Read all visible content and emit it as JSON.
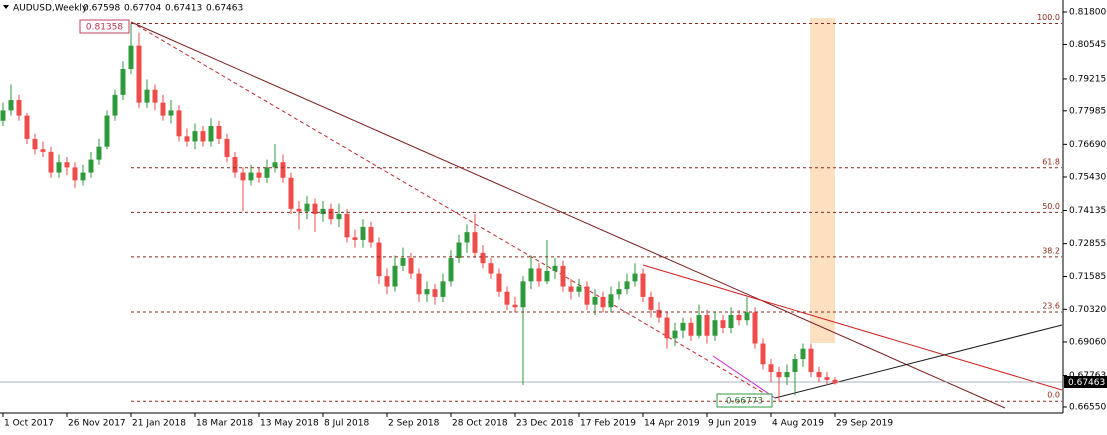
{
  "chart_data": {
    "type": "candlestick",
    "title": "AUDUSD,Weekly",
    "up_color": "#2e9a3c",
    "down_color": "#ee4b4b",
    "categories": [
      "1 Oct 2017",
      null,
      null,
      null,
      null,
      null,
      null,
      null,
      "26 Nov 2017",
      null,
      null,
      null,
      null,
      null,
      null,
      null,
      "21 Jan 2018",
      null,
      null,
      null,
      null,
      null,
      null,
      null,
      "18 Mar 2018",
      null,
      null,
      null,
      null,
      null,
      null,
      null,
      "13 May 2018",
      null,
      null,
      null,
      null,
      null,
      null,
      null,
      "8 Jul 2018",
      null,
      null,
      null,
      null,
      null,
      null,
      null,
      "2 Sep 2018",
      null,
      null,
      null,
      null,
      null,
      null,
      null,
      "28 Oct 2018",
      null,
      null,
      null,
      null,
      null,
      null,
      null,
      "23 Dec 2018",
      null,
      null,
      null,
      null,
      null,
      null,
      null,
      "17 Feb 2019",
      null,
      null,
      null,
      null,
      null,
      null,
      null,
      "14 Apr 2019",
      null,
      null,
      null,
      null,
      null,
      null,
      null,
      "9 Jun 2019",
      null,
      null,
      null,
      null,
      null,
      null,
      null,
      "4 Aug 2019",
      null,
      null,
      null,
      null,
      null,
      null,
      null,
      "29 Sep 2019"
    ],
    "open": [
      0.776,
      0.78,
      0.784,
      0.778,
      0.769,
      0.765,
      0.764,
      0.756,
      0.76,
      0.758,
      0.753,
      0.756,
      0.761,
      0.766,
      0.778,
      0.786,
      0.796,
      0.805,
      0.783,
      0.788,
      0.783,
      0.778,
      0.78,
      0.77,
      0.768,
      0.772,
      0.768,
      0.774,
      0.769,
      0.762,
      0.756,
      0.753,
      0.756,
      0.754,
      0.758,
      0.76,
      0.754,
      0.742,
      0.741,
      0.744,
      0.74,
      0.742,
      0.738,
      0.74,
      0.731,
      0.73,
      0.735,
      0.729,
      0.716,
      0.712,
      0.72,
      0.723,
      0.717,
      0.709,
      0.711,
      0.708,
      0.714,
      0.723,
      0.729,
      0.733,
      0.725,
      0.721,
      0.717,
      0.71,
      0.705,
      0.704,
      0.714,
      0.719,
      0.714,
      0.718,
      0.72,
      0.712,
      0.71,
      0.712,
      0.705,
      0.708,
      0.704,
      0.709,
      0.711,
      0.714,
      0.717,
      0.708,
      0.703,
      0.7,
      0.692,
      0.695,
      0.698,
      0.693,
      0.701,
      0.693,
      0.699,
      0.696,
      0.701,
      0.699,
      0.702,
      0.69,
      0.682,
      0.679,
      0.677,
      0.679,
      0.684,
      0.688,
      0.679,
      0.677,
      0.67598
    ],
    "high": [
      0.783,
      0.79,
      0.786,
      0.779,
      0.771,
      0.768,
      0.766,
      0.763,
      0.762,
      0.76,
      0.759,
      0.764,
      0.769,
      0.78,
      0.788,
      0.799,
      0.81358,
      0.81,
      0.792,
      0.79,
      0.786,
      0.784,
      0.782,
      0.773,
      0.775,
      0.774,
      0.777,
      0.776,
      0.771,
      0.764,
      0.758,
      0.759,
      0.758,
      0.761,
      0.767,
      0.763,
      0.756,
      0.745,
      0.747,
      0.746,
      0.745,
      0.744,
      0.744,
      0.742,
      0.734,
      0.738,
      0.737,
      0.731,
      0.719,
      0.724,
      0.727,
      0.725,
      0.719,
      0.714,
      0.713,
      0.717,
      0.726,
      0.732,
      0.736,
      0.74,
      0.728,
      0.723,
      0.719,
      0.712,
      0.708,
      0.716,
      0.724,
      0.721,
      0.73,
      0.723,
      0.722,
      0.715,
      0.715,
      0.714,
      0.711,
      0.71,
      0.712,
      0.714,
      0.717,
      0.721,
      0.719,
      0.71,
      0.706,
      0.702,
      0.698,
      0.7,
      0.7,
      0.705,
      0.703,
      0.702,
      0.701,
      0.704,
      0.703,
      0.708,
      0.704,
      0.692,
      0.684,
      0.681,
      0.682,
      0.686,
      0.69,
      0.69,
      0.681,
      0.679,
      0.67704
    ],
    "low": [
      0.774,
      0.778,
      0.776,
      0.767,
      0.763,
      0.762,
      0.754,
      0.754,
      0.755,
      0.75,
      0.751,
      0.754,
      0.759,
      0.765,
      0.776,
      0.784,
      0.794,
      0.781,
      0.781,
      0.78,
      0.776,
      0.775,
      0.768,
      0.766,
      0.765,
      0.766,
      0.766,
      0.767,
      0.76,
      0.754,
      0.741,
      0.751,
      0.752,
      0.752,
      0.756,
      0.752,
      0.74,
      0.734,
      0.738,
      0.733,
      0.737,
      0.736,
      0.735,
      0.729,
      0.727,
      0.727,
      0.727,
      0.713,
      0.709,
      0.71,
      0.718,
      0.715,
      0.706,
      0.706,
      0.705,
      0.706,
      0.712,
      0.721,
      0.725,
      0.723,
      0.719,
      0.715,
      0.708,
      0.703,
      0.702,
      0.674,
      0.711,
      0.712,
      0.713,
      0.715,
      0.71,
      0.707,
      0.708,
      0.703,
      0.701,
      0.702,
      0.702,
      0.707,
      0.709,
      0.712,
      0.706,
      0.7,
      0.698,
      0.688,
      0.689,
      0.692,
      0.691,
      0.692,
      0.69,
      0.691,
      0.694,
      0.694,
      0.697,
      0.697,
      0.688,
      0.68,
      0.675,
      0.66773,
      0.674,
      0.67,
      0.681,
      0.677,
      0.675,
      0.674,
      0.67413
    ],
    "close": [
      0.78,
      0.784,
      0.778,
      0.769,
      0.765,
      0.764,
      0.756,
      0.76,
      0.758,
      0.753,
      0.756,
      0.761,
      0.766,
      0.778,
      0.786,
      0.796,
      0.805,
      0.783,
      0.788,
      0.783,
      0.778,
      0.78,
      0.77,
      0.768,
      0.772,
      0.768,
      0.774,
      0.769,
      0.762,
      0.756,
      0.753,
      0.756,
      0.754,
      0.758,
      0.76,
      0.754,
      0.742,
      0.741,
      0.744,
      0.74,
      0.742,
      0.738,
      0.74,
      0.731,
      0.73,
      0.735,
      0.729,
      0.716,
      0.712,
      0.72,
      0.723,
      0.717,
      0.709,
      0.711,
      0.708,
      0.714,
      0.723,
      0.729,
      0.733,
      0.725,
      0.721,
      0.717,
      0.71,
      0.705,
      0.704,
      0.714,
      0.719,
      0.714,
      0.718,
      0.72,
      0.712,
      0.71,
      0.712,
      0.705,
      0.708,
      0.704,
      0.709,
      0.711,
      0.714,
      0.717,
      0.708,
      0.703,
      0.7,
      0.692,
      0.695,
      0.698,
      0.693,
      0.701,
      0.693,
      0.699,
      0.696,
      0.701,
      0.699,
      0.702,
      0.69,
      0.682,
      0.679,
      0.677,
      0.679,
      0.684,
      0.688,
      0.679,
      0.677,
      0.67598,
      0.67463
    ],
    "ylim": [
      0.66317,
      0.82263
    ],
    "yticks": [
      {
        "value": 0.818,
        "label": "0.81800"
      },
      {
        "value": 0.80545,
        "label": "0.80545"
      },
      {
        "value": 0.79215,
        "label": "0.79215"
      },
      {
        "value": 0.77985,
        "label": "0.77985"
      },
      {
        "value": 0.7669,
        "label": "0.76690"
      },
      {
        "value": 0.7543,
        "label": "0.75430"
      },
      {
        "value": 0.74135,
        "label": "0.74135"
      },
      {
        "value": 0.72855,
        "label": "0.72855"
      },
      {
        "value": 0.71585,
        "label": "0.71585"
      },
      {
        "value": 0.7032,
        "label": "0.70320"
      },
      {
        "value": 0.6906,
        "label": "0.69060"
      },
      {
        "value": 0.67763,
        "label": "0.67763"
      },
      {
        "value": 0.6655,
        "label": "0.66550"
      }
    ],
    "fibonacci": [
      {
        "level": "100.0",
        "price": 0.81358
      },
      {
        "level": "61.8",
        "price": 0.75786
      },
      {
        "level": "50.0",
        "price": 0.740655
      },
      {
        "level": "38.2",
        "price": 0.72344
      },
      {
        "level": "23.6",
        "price": 0.70215
      },
      {
        "level": "0.0",
        "price": 0.66773
      }
    ]
  }
}
